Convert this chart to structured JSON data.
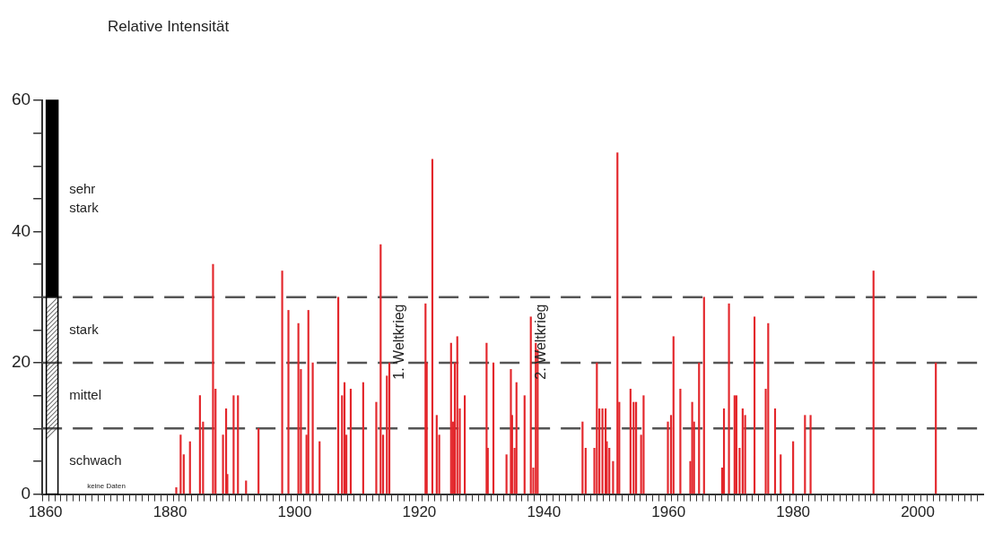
{
  "chart_data": {
    "type": "bar",
    "title": "Relative Intensität",
    "x": [
      1881.0,
      1881.7,
      1882.2,
      1883.2,
      1884.8,
      1885.3,
      1886.9,
      1887.3,
      1888.5,
      1889.0,
      1889.2,
      1890.2,
      1890.9,
      1892.2,
      1894.2,
      1898.0,
      1899.0,
      1900.6,
      1901.0,
      1901.9,
      1902.2,
      1902.9,
      1904.0,
      1907.0,
      1907.6,
      1908.0,
      1908.3,
      1909.0,
      1911.0,
      1913.1,
      1913.8,
      1914.2,
      1914.8,
      1915.2,
      1921.0,
      1921.2,
      1922.1,
      1922.8,
      1923.2,
      1925.1,
      1925.4,
      1925.7,
      1926.1,
      1926.5,
      1927.3,
      1930.8,
      1931.0,
      1931.9,
      1934.0,
      1934.7,
      1934.9,
      1935.3,
      1935.6,
      1936.9,
      1937.9,
      1938.3,
      1938.7,
      1939.0,
      1946.2,
      1946.7,
      1948.1,
      1948.5,
      1948.9,
      1949.4,
      1949.9,
      1950.1,
      1950.5,
      1951.1,
      1951.8,
      1952.1,
      1953.9,
      1954.4,
      1954.8,
      1955.6,
      1956.0,
      1959.9,
      1960.4,
      1960.8,
      1961.9,
      1963.5,
      1963.8,
      1964.1,
      1964.9,
      1965.7,
      1968.6,
      1968.9,
      1969.7,
      1970.6,
      1970.9,
      1971.4,
      1971.9,
      1972.3,
      1973.8,
      1975.6,
      1976.0,
      1977.1,
      1978.0,
      1980.0,
      1981.9,
      1982.8,
      1992.9,
      2002.9
    ],
    "series": [
      {
        "color": "#e3262b",
        "values": [
          1,
          9,
          6,
          8,
          15,
          11,
          35,
          16,
          9,
          13,
          3,
          15,
          15,
          2,
          10,
          34,
          28,
          26,
          19,
          9,
          28,
          20,
          8,
          30,
          15,
          17,
          9,
          16,
          17,
          14,
          38,
          9,
          18,
          20,
          29,
          20,
          51,
          12,
          9,
          23,
          11,
          20,
          24,
          13,
          15,
          23,
          7,
          20,
          6,
          19,
          12,
          7,
          17,
          15,
          27,
          4,
          23,
          22,
          11,
          7,
          7,
          20,
          13,
          13,
          13,
          8,
          7,
          5,
          52,
          14,
          16,
          14,
          14,
          9,
          15,
          11,
          12,
          24,
          16,
          5,
          14,
          11,
          20,
          30,
          4,
          13,
          29,
          15,
          15,
          7,
          13,
          12,
          27,
          16,
          26,
          13,
          6,
          8,
          12,
          12,
          34,
          20
        ]
      }
    ],
    "xlim": [
      1860,
      2010
    ],
    "xticks": [
      1860,
      {
        "value": 1861,
        "label": null
      },
      {
        "value": 1862,
        "label": null
      },
      {
        "value": 1863,
        "label": null
      },
      {
        "value": 1864,
        "label": null
      },
      {
        "value": 1865,
        "label": null
      },
      {
        "value": 1866,
        "label": null
      },
      {
        "value": 1867,
        "label": null
      },
      {
        "value": 1868,
        "label": null
      },
      {
        "value": 1869,
        "label": null
      },
      {
        "value": 1870,
        "label": null
      },
      {
        "value": 1871,
        "label": null
      },
      {
        "value": 1872,
        "label": null
      },
      {
        "value": 1873,
        "label": null
      },
      {
        "value": 1874,
        "label": null
      },
      {
        "value": 1875,
        "label": null
      },
      {
        "value": 1876,
        "label": null
      },
      {
        "value": 1877,
        "label": null
      },
      {
        "value": 1878,
        "label": null
      },
      {
        "value": 1879,
        "label": null
      },
      1880,
      {
        "value": 1881,
        "label": null
      },
      {
        "value": 1882,
        "label": null
      },
      {
        "value": 1883,
        "label": null
      },
      {
        "value": 1884,
        "label": null
      },
      {
        "value": 1885,
        "label": null
      },
      {
        "value": 1886,
        "label": null
      },
      {
        "value": 1887,
        "label": null
      },
      {
        "value": 1888,
        "label": null
      },
      {
        "value": 1889,
        "label": null
      },
      {
        "value": 1890,
        "label": null
      },
      {
        "value": 1891,
        "label": null
      },
      {
        "value": 1892,
        "label": null
      },
      {
        "value": 1893,
        "label": null
      },
      {
        "value": 1894,
        "label": null
      },
      {
        "value": 1895,
        "label": null
      },
      {
        "value": 1896,
        "label": null
      },
      {
        "value": 1897,
        "label": null
      },
      {
        "value": 1898,
        "label": null
      },
      {
        "value": 1899,
        "label": null
      },
      1900,
      {
        "value": 1901,
        "label": null
      },
      {
        "value": 1902,
        "label": null
      },
      {
        "value": 1903,
        "label": null
      },
      {
        "value": 1904,
        "label": null
      },
      {
        "value": 1905,
        "label": null
      },
      {
        "value": 1906,
        "label": null
      },
      {
        "value": 1907,
        "label": null
      },
      {
        "value": 1908,
        "label": null
      },
      {
        "value": 1909,
        "label": null
      },
      {
        "value": 1910,
        "label": null
      },
      {
        "value": 1911,
        "label": null
      },
      {
        "value": 1912,
        "label": null
      },
      {
        "value": 1913,
        "label": null
      },
      {
        "value": 1914,
        "label": null
      },
      {
        "value": 1915,
        "label": null
      },
      {
        "value": 1916,
        "label": null
      },
      {
        "value": 1917,
        "label": null
      },
      {
        "value": 1918,
        "label": null
      },
      {
        "value": 1919,
        "label": null
      },
      1920,
      {
        "value": 1921,
        "label": null
      },
      {
        "value": 1922,
        "label": null
      },
      {
        "value": 1923,
        "label": null
      },
      {
        "value": 1924,
        "label": null
      },
      {
        "value": 1925,
        "label": null
      },
      {
        "value": 1926,
        "label": null
      },
      {
        "value": 1927,
        "label": null
      },
      {
        "value": 1928,
        "label": null
      },
      {
        "value": 1929,
        "label": null
      },
      {
        "value": 1930,
        "label": null
      },
      {
        "value": 1931,
        "label": null
      },
      {
        "value": 1932,
        "label": null
      },
      {
        "value": 1933,
        "label": null
      },
      {
        "value": 1934,
        "label": null
      },
      {
        "value": 1935,
        "label": null
      },
      {
        "value": 1936,
        "label": null
      },
      {
        "value": 1937,
        "label": null
      },
      {
        "value": 1938,
        "label": null
      },
      {
        "value": 1939,
        "label": null
      },
      1940,
      {
        "value": 1941,
        "label": null
      },
      {
        "value": 1942,
        "label": null
      },
      {
        "value": 1943,
        "label": null
      },
      {
        "value": 1944,
        "label": null
      },
      {
        "value": 1945,
        "label": null
      },
      {
        "value": 1946,
        "label": null
      },
      {
        "value": 1947,
        "label": null
      },
      {
        "value": 1948,
        "label": null
      },
      {
        "value": 1949,
        "label": null
      },
      {
        "value": 1950,
        "label": null
      },
      {
        "value": 1951,
        "label": null
      },
      {
        "value": 1952,
        "label": null
      },
      {
        "value": 1953,
        "label": null
      },
      {
        "value": 1954,
        "label": null
      },
      {
        "value": 1955,
        "label": null
      },
      {
        "value": 1956,
        "label": null
      },
      {
        "value": 1957,
        "label": null
      },
      {
        "value": 1958,
        "label": null
      },
      {
        "value": 1959,
        "label": null
      },
      1960,
      {
        "value": 1961,
        "label": null
      },
      {
        "value": 1962,
        "label": null
      },
      {
        "value": 1963,
        "label": null
      },
      {
        "value": 1964,
        "label": null
      },
      {
        "value": 1965,
        "label": null
      },
      {
        "value": 1966,
        "label": null
      },
      {
        "value": 1967,
        "label": null
      },
      {
        "value": 1968,
        "label": null
      },
      {
        "value": 1969,
        "label": null
      },
      {
        "value": 1970,
        "label": null
      },
      {
        "value": 1971,
        "label": null
      },
      {
        "value": 1972,
        "label": null
      },
      {
        "value": 1973,
        "label": null
      },
      {
        "value": 1974,
        "label": null
      },
      {
        "value": 1975,
        "label": null
      },
      {
        "value": 1976,
        "label": null
      },
      {
        "value": 1977,
        "label": null
      },
      {
        "value": 1978,
        "label": null
      },
      {
        "value": 1979,
        "label": null
      },
      1980,
      {
        "value": 1981,
        "label": null
      },
      {
        "value": 1982,
        "label": null
      },
      {
        "value": 1983,
        "label": null
      },
      {
        "value": 1984,
        "label": null
      },
      {
        "value": 1985,
        "label": null
      },
      {
        "value": 1986,
        "label": null
      },
      {
        "value": 1987,
        "label": null
      },
      {
        "value": 1988,
        "label": null
      },
      {
        "value": 1989,
        "label": null
      },
      {
        "value": 1990,
        "label": null
      },
      {
        "value": 1991,
        "label": null
      },
      {
        "value": 1992,
        "label": null
      },
      {
        "value": 1993,
        "label": null
      },
      {
        "value": 1994,
        "label": null
      },
      {
        "value": 1995,
        "label": null
      },
      {
        "value": 1996,
        "label": null
      },
      {
        "value": 1997,
        "label": null
      },
      {
        "value": 1998,
        "label": null
      },
      {
        "value": 1999,
        "label": null
      },
      2000,
      {
        "value": 2001,
        "label": null
      },
      {
        "value": 2002,
        "label": null
      },
      {
        "value": 2003,
        "label": null
      },
      {
        "value": 2004,
        "label": null
      },
      {
        "value": 2005,
        "label": null
      },
      {
        "value": 2006,
        "label": null
      },
      {
        "value": 2007,
        "label": null
      },
      {
        "value": 2008,
        "label": null
      },
      {
        "value": 2009,
        "label": null
      }
    ],
    "ylim": [
      0,
      60
    ],
    "yticks": [
      0,
      {
        "value": 5,
        "label": null
      },
      {
        "value": 10,
        "label": null
      },
      {
        "value": 15,
        "label": null
      },
      20,
      {
        "value": 25,
        "label": null
      },
      {
        "value": 30,
        "label": null
      },
      {
        "value": 35,
        "label": null
      },
      40,
      {
        "value": 45,
        "label": null
      },
      {
        "value": 50,
        "label": null
      },
      {
        "value": 55,
        "label": null
      },
      60
    ],
    "ref_lines": [
      {
        "axis": "y",
        "value": 10,
        "color": "#555555",
        "line_style": "dashed"
      },
      {
        "axis": "y",
        "value": 20,
        "color": "#555555",
        "line_style": "dashed"
      },
      {
        "axis": "y",
        "value": 30,
        "color": "#555555",
        "line_style": "dashed"
      }
    ],
    "annotations": [
      "schwach",
      "mittel",
      "stark",
      "sehr stark",
      "keine Daten",
      "1. Weltkrieg",
      "2. Weltkrieg"
    ],
    "grid": false,
    "legend": false
  }
}
